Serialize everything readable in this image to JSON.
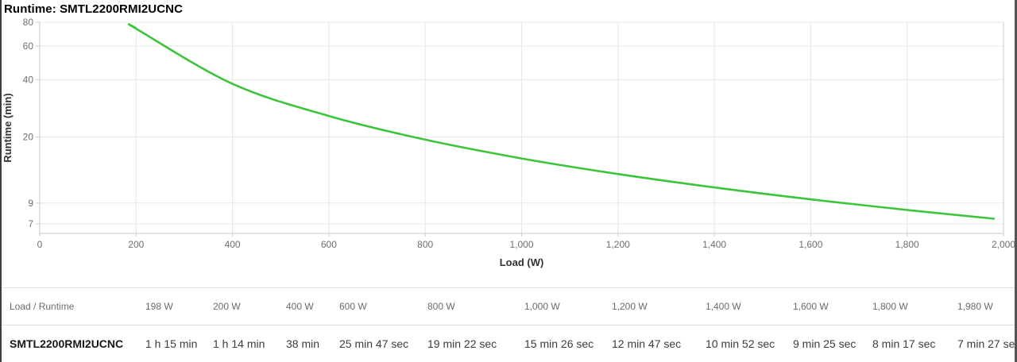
{
  "chart_data": {
    "type": "line",
    "title": "Runtime: SMTL2200RMI2UCNC",
    "xlabel": "Load (W)",
    "ylabel": "Runtime (min)",
    "x_scale": "linear",
    "y_scale": "log",
    "xlim": [
      0,
      2000
    ],
    "ylim": [
      6.2,
      80
    ],
    "x_ticks": [
      0,
      200,
      400,
      600,
      800,
      1000,
      1200,
      1400,
      1600,
      1800,
      2000
    ],
    "x_tick_labels": [
      "0",
      "200",
      "400",
      "600",
      "800",
      "1,000",
      "1,200",
      "1,400",
      "1,600",
      "1,800",
      "2,000"
    ],
    "y_ticks": [
      80,
      60,
      40,
      20,
      9,
      7
    ],
    "y_tick_labels": [
      "80",
      "60",
      "40",
      "20",
      "9",
      "7"
    ],
    "grid": true,
    "legend": "none",
    "series": [
      {
        "name": "SMTL2200RMI2UCNC",
        "color": "#3dc43d",
        "points_load_w_vs_runtime_min": [
          [
            198,
            75
          ],
          [
            200,
            74
          ],
          [
            400,
            38
          ],
          [
            600,
            25.783
          ],
          [
            800,
            19.367
          ],
          [
            1000,
            15.433
          ],
          [
            1200,
            12.783
          ],
          [
            1400,
            10.867
          ],
          [
            1600,
            9.417
          ],
          [
            1800,
            8.283
          ],
          [
            1980,
            7.45
          ]
        ]
      }
    ]
  },
  "colors": {
    "line": "#3dc43d",
    "gridline": "#e7e7e7",
    "axis": "#c9c9c9",
    "tick_label": "#6e6e6e",
    "axis_title": "#333333"
  },
  "table": {
    "header": {
      "label": "Load / Runtime",
      "columns": [
        "198 W",
        "200 W",
        "400 W",
        "600 W",
        "800 W",
        "1,000 W",
        "1,200 W",
        "1,400 W",
        "1,600 W",
        "1,800 W",
        "1,980 W"
      ]
    },
    "rows": [
      {
        "label": "SMTL2200RMI2UCNC",
        "values": [
          "1 h 15 min",
          "1 h 14 min",
          "38 min",
          "25 min 47 sec",
          "19 min 22 sec",
          "15 min 26 sec",
          "12 min 47 sec",
          "10 min 52 sec",
          "9 min 25 sec",
          "8 min 17 sec",
          "7 min 27 sec"
        ]
      }
    ]
  }
}
